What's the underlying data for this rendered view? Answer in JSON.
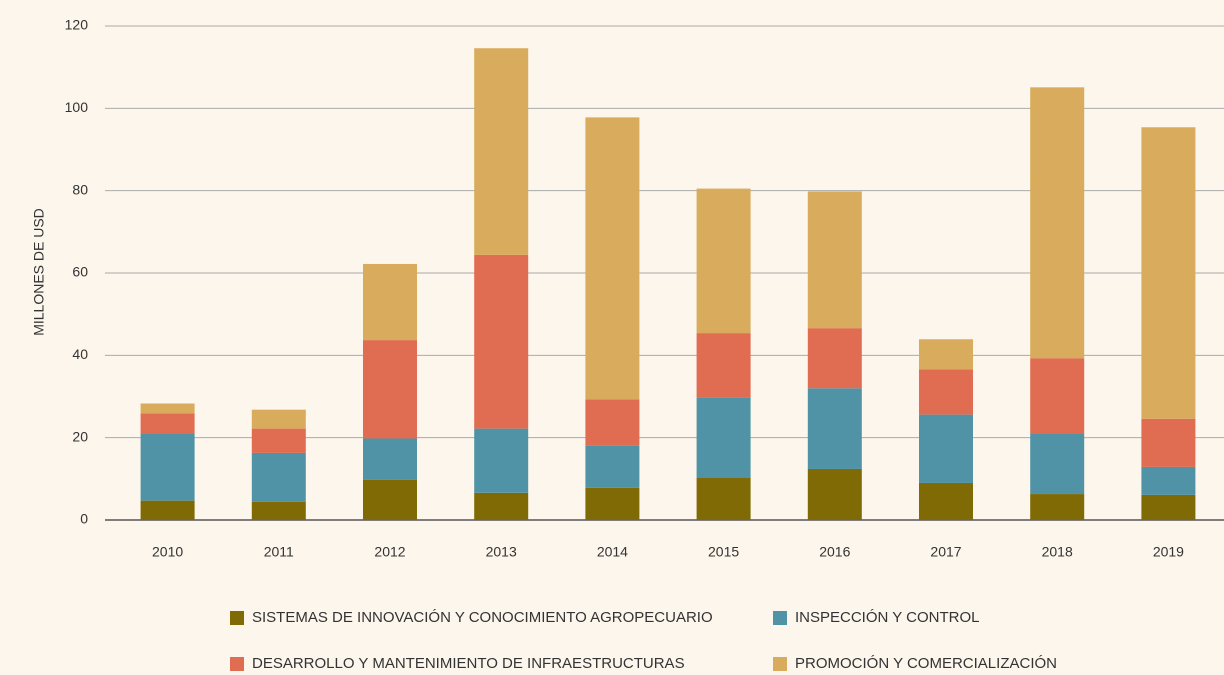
{
  "chart_data": {
    "type": "stacked_bar",
    "y_label": "MILLONES DE USD",
    "categories": [
      "2010",
      "2011",
      "2012",
      "2013",
      "2014",
      "2015",
      "2016",
      "2017",
      "2018",
      "2019"
    ],
    "series": [
      {
        "name": "SISTEMAS DE INNOVACIÓN Y CONOCIMIENTO AGROPECUARIO",
        "color": "#7f6a05",
        "values": [
          4.7,
          4.4,
          9.8,
          6.6,
          7.8,
          10.2,
          12.4,
          9.0,
          6.3,
          6.1
        ]
      },
      {
        "name": "INSPECCIÓN Y CONTROL",
        "color": "#5093a6",
        "values": [
          16.3,
          11.9,
          10.0,
          15.6,
          10.2,
          19.6,
          19.6,
          16.6,
          14.7,
          6.8
        ]
      },
      {
        "name": "DESARROLLO Y MANTENIMIENTO DE INFRAESTRUCTURAS",
        "color": "#e06c52",
        "values": [
          4.9,
          5.9,
          23.9,
          42.2,
          11.3,
          15.6,
          14.6,
          11.0,
          18.3,
          11.7
        ]
      },
      {
        "name": "PROMOCIÓN Y COMERCIALIZACIÓN",
        "color": "#d8ac5c",
        "values": [
          2.4,
          4.6,
          18.5,
          50.2,
          68.5,
          35.1,
          33.2,
          7.3,
          65.8,
          70.8
        ]
      }
    ],
    "ylim": [
      0,
      120
    ],
    "yticks": [
      0,
      20,
      40,
      60,
      80,
      100,
      120
    ],
    "grid": true
  }
}
